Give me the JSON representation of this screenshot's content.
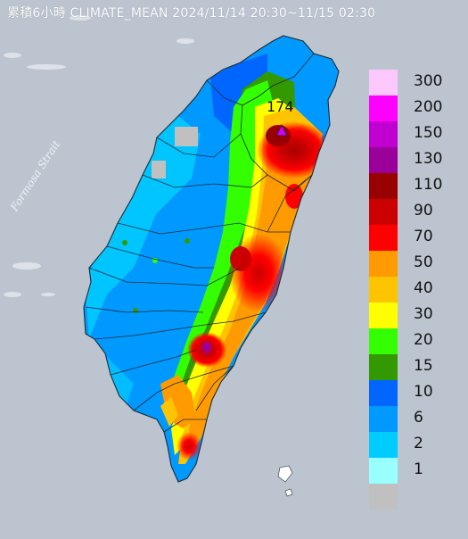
{
  "title": "累積6小時 CLIMATE_MEAN 2024/11/14 20:30~11/15 02:30",
  "strait_label": "Formosa Strait",
  "max_marker": {
    "value": "174",
    "icon": "triangle-marker-icon",
    "color": "#d000ff"
  },
  "legend": [
    {
      "label": "300",
      "color": "#fdc9fd"
    },
    {
      "label": "200",
      "color": "#fe00fe"
    },
    {
      "label": "150",
      "color": "#c000d0"
    },
    {
      "label": "130",
      "color": "#9a0099"
    },
    {
      "label": "110",
      "color": "#990000"
    },
    {
      "label": "90",
      "color": "#cc0000"
    },
    {
      "label": "70",
      "color": "#ff0000"
    },
    {
      "label": "50",
      "color": "#ff9a00"
    },
    {
      "label": "40",
      "color": "#ffc400"
    },
    {
      "label": "30",
      "color": "#ffff00"
    },
    {
      "label": "20",
      "color": "#33ff00"
    },
    {
      "label": "15",
      "color": "#339900"
    },
    {
      "label": "10",
      "color": "#0066ff"
    },
    {
      "label": "6",
      "color": "#0099ff"
    },
    {
      "label": "2",
      "color": "#00ccff"
    },
    {
      "label": "1",
      "color": "#99ffff"
    },
    {
      "label": "",
      "color": "#c0c0c0"
    }
  ]
}
